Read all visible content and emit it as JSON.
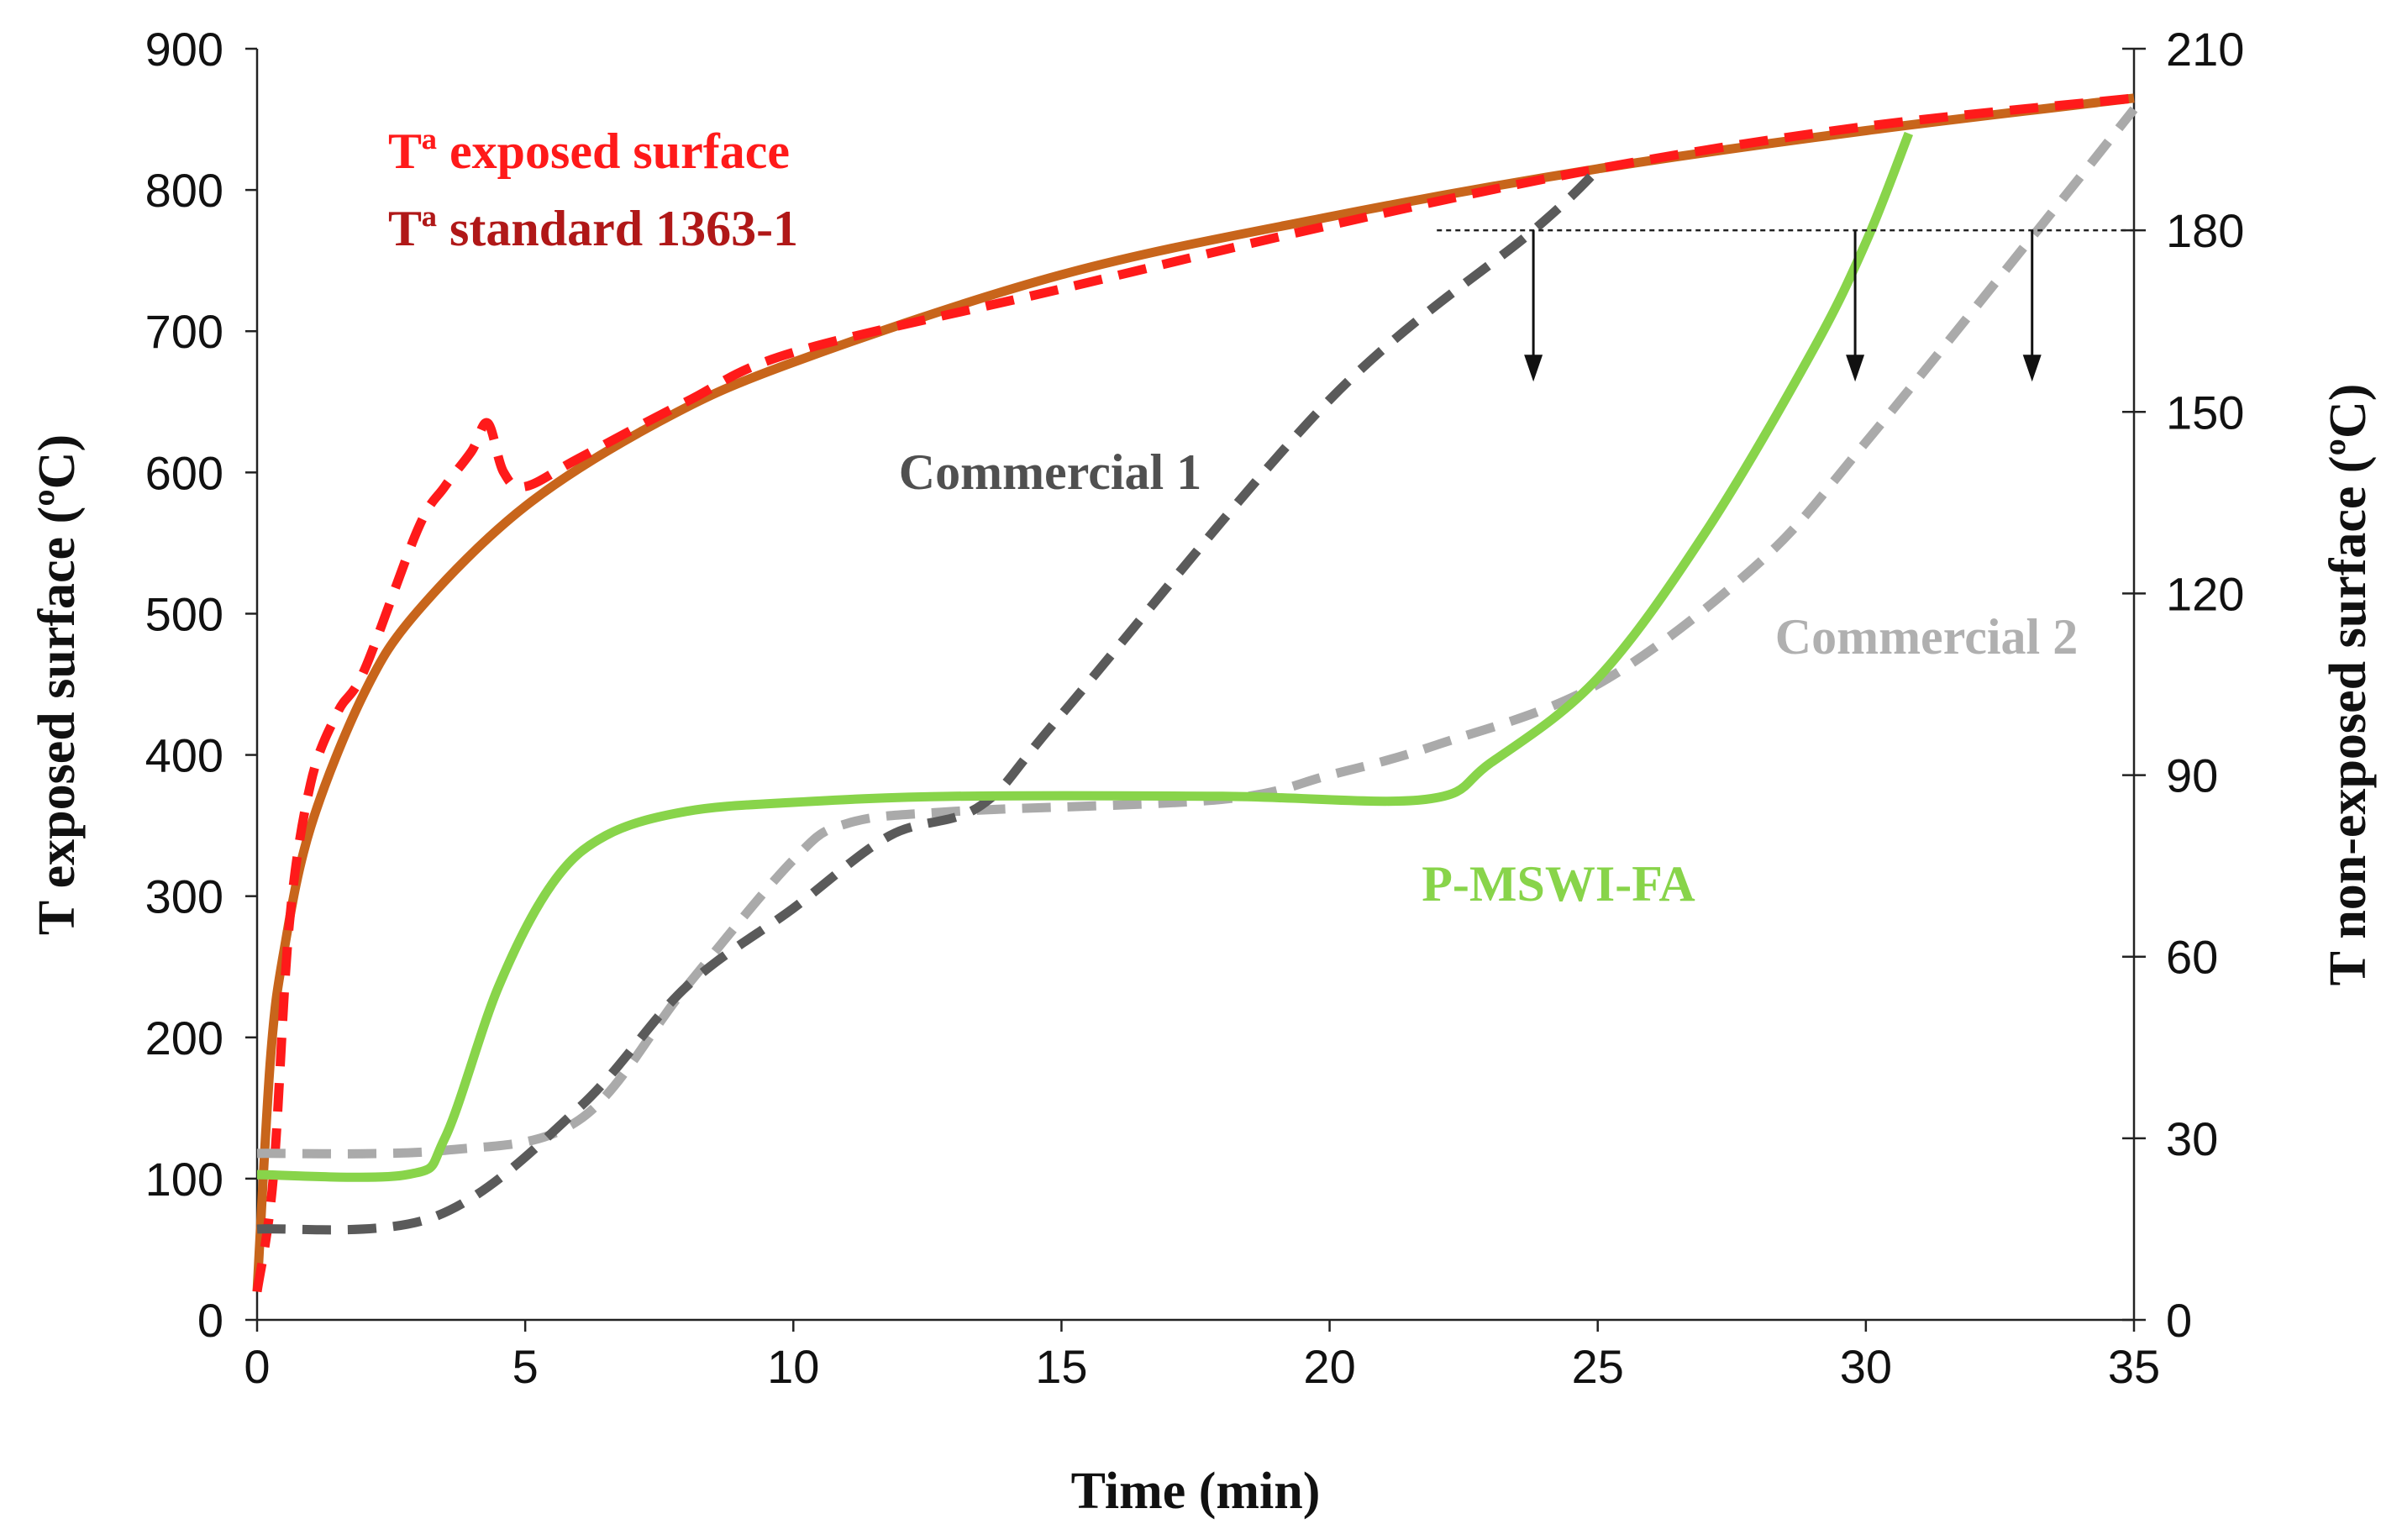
{
  "chart_data": {
    "type": "line",
    "title": "",
    "xlabel": "Time (min)",
    "ylabel_left": "T exposed surface (ºC)",
    "ylabel_right": "T non-exposed surface (ºC)",
    "xlim": [
      0,
      35
    ],
    "ylim_left": [
      0,
      900
    ],
    "ylim_right": [
      0,
      210
    ],
    "x_ticks": [
      "0",
      "5",
      "10",
      "15",
      "20",
      "25",
      "30",
      "35"
    ],
    "y_ticks_left": [
      "0",
      "100",
      "200",
      "300",
      "400",
      "500",
      "600",
      "700",
      "800",
      "900"
    ],
    "y_ticks_right": [
      "0",
      "30",
      "60",
      "90",
      "120",
      "150",
      "180",
      "210"
    ],
    "grid": false,
    "series": [
      {
        "name": "Tª exposed surface",
        "axis": "left",
        "style": "dashed",
        "color": "#ff1a1a",
        "x": [
          0,
          0.3,
          0.6,
          1,
          1.5,
          2,
          3,
          3.5,
          4,
          4.3,
          4.6,
          5,
          6,
          8,
          10,
          15,
          20,
          25,
          30,
          35
        ],
        "y": [
          20,
          100,
          280,
          380,
          430,
          460,
          560,
          590,
          615,
          635,
          600,
          590,
          610,
          650,
          685,
          730,
          775,
          815,
          845,
          865
        ]
      },
      {
        "name": "Tª standard 1363-1",
        "axis": "left",
        "style": "solid",
        "color": "#c8651b",
        "x": [
          0,
          0.25,
          0.5,
          1,
          2,
          3,
          5,
          7.5,
          10,
          15,
          20,
          25,
          30,
          35
        ],
        "y": [
          20,
          185,
          261,
          349,
          444,
          502,
          576,
          636,
          678,
          740,
          781,
          815,
          842,
          865
        ]
      },
      {
        "name": "Commercial 1",
        "axis": "right",
        "style": "dashed",
        "color": "#5a5a5a",
        "x": [
          0,
          3.3,
          6,
          8,
          10,
          11.8,
          13.5,
          15,
          20,
          23.8,
          25
        ],
        "y": [
          15,
          17,
          35,
          55,
          68,
          80,
          85,
          100,
          152,
          180,
          190
        ]
      },
      {
        "name": "Commercial 2",
        "axis": "right",
        "style": "dashed",
        "color": "#aaaaaa",
        "x": [
          0,
          3.5,
          6,
          8,
          10,
          11,
          13,
          18,
          20,
          22,
          25,
          28,
          30,
          33.2,
          35
        ],
        "y": [
          27.5,
          28,
          33,
          55,
          76,
          82,
          84,
          86,
          90,
          95,
          105,
          125,
          145,
          180,
          200
        ]
      },
      {
        "name": "P-MSWI-FA",
        "axis": "right",
        "style": "solid",
        "color": "#88d44a",
        "x": [
          0,
          2.8,
          3.5,
          4.5,
          5.5,
          6.5,
          8,
          10,
          13,
          18,
          21.8,
          23,
          25,
          27,
          29,
          30,
          30.8
        ],
        "y": [
          24,
          24,
          30,
          55,
          72,
          80,
          84,
          85.5,
          86.5,
          86.5,
          86,
          92,
          106,
          130,
          160,
          178,
          196
        ]
      }
    ],
    "annotations": {
      "threshold_line": {
        "axis": "right",
        "y": 180,
        "x_from": 22,
        "x_to": 35
      },
      "arrows_x": [
        23.8,
        29.8,
        33.1
      ],
      "arrow_to_right_value": 155
    },
    "labels": {
      "exposed": "Tª exposed surface",
      "standard": "Tª standard 1363-1",
      "commercial1": "Commercial 1",
      "commercial2": "Commercial 2",
      "pmswi": "P-MSWI-FA"
    }
  }
}
